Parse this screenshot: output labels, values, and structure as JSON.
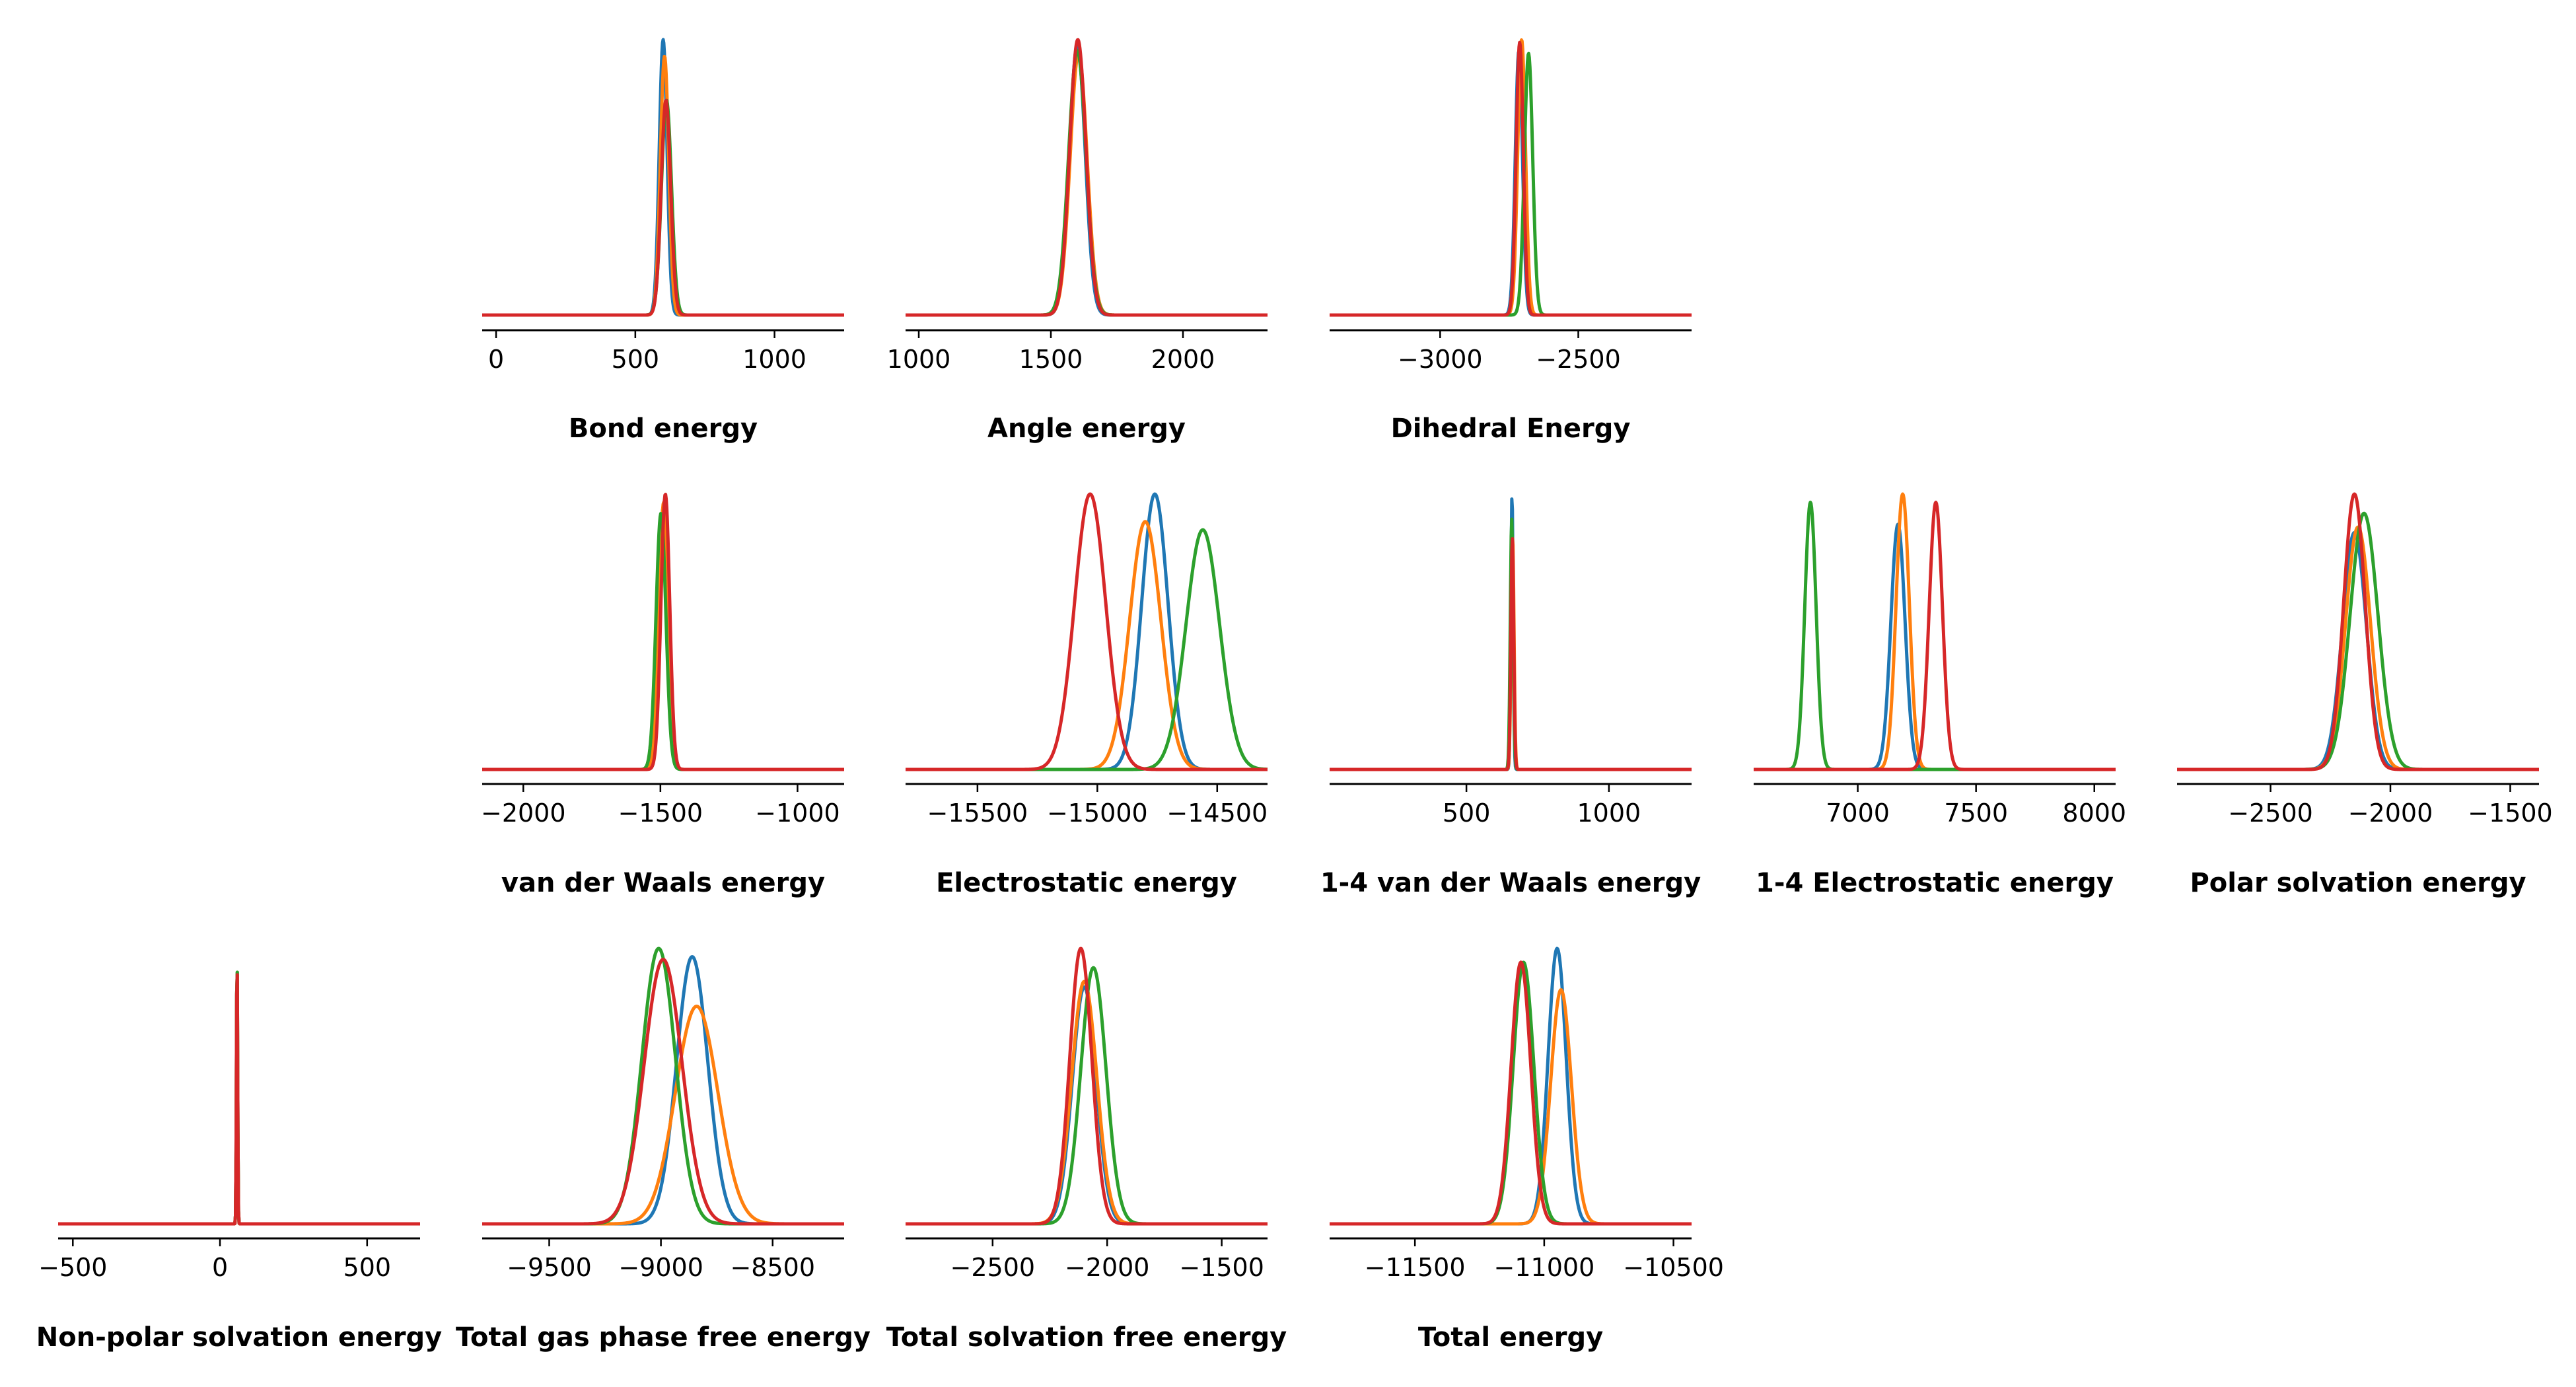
{
  "colors": {
    "blue": "#1f77b4",
    "orange": "#ff7f0e",
    "green": "#2ca02c",
    "red": "#d62728",
    "axis": "#000000",
    "background": "#ffffff"
  },
  "chart_data": [
    {
      "type": "line",
      "title": "Bond energy",
      "xlim": [
        -50,
        1250
      ],
      "xticks": [
        {
          "value": 0,
          "label": "0"
        },
        {
          "value": 500,
          "label": "500"
        },
        {
          "value": 1000,
          "label": "1000"
        }
      ],
      "series": [
        {
          "color": "#1f77b4",
          "mean": 600,
          "sd": 14,
          "peak": 1.0
        },
        {
          "color": "#ff7f0e",
          "mean": 605,
          "sd": 15,
          "peak": 0.94
        },
        {
          "color": "#2ca02c",
          "mean": 612,
          "sd": 18,
          "peak": 0.78
        },
        {
          "color": "#d62728",
          "mean": 610,
          "sd": 17,
          "peak": 0.78
        }
      ]
    },
    {
      "type": "line",
      "title": "Angle energy",
      "xlim": [
        950,
        2320
      ],
      "xticks": [
        {
          "value": 1000,
          "label": "1000"
        },
        {
          "value": 1500,
          "label": "1500"
        },
        {
          "value": 2000,
          "label": "2000"
        }
      ],
      "series": [
        {
          "color": "#1f77b4",
          "mean": 1600,
          "sd": 30,
          "peak": 0.98
        },
        {
          "color": "#ff7f0e",
          "mean": 1605,
          "sd": 32,
          "peak": 0.95
        },
        {
          "color": "#2ca02c",
          "mean": 1600,
          "sd": 33,
          "peak": 0.96
        },
        {
          "color": "#d62728",
          "mean": 1602,
          "sd": 31,
          "peak": 1.0
        }
      ]
    },
    {
      "type": "line",
      "title": "Dihedral Energy",
      "xlim": [
        -3400,
        -2090
      ],
      "xticks": [
        {
          "value": -3000,
          "label": "−3000"
        },
        {
          "value": -2500,
          "label": "−2500"
        }
      ],
      "series": [
        {
          "color": "#1f77b4",
          "mean": -2715,
          "sd": 13,
          "peak": 0.96
        },
        {
          "color": "#ff7f0e",
          "mean": -2705,
          "sd": 14,
          "peak": 1.0
        },
        {
          "color": "#2ca02c",
          "mean": -2680,
          "sd": 15,
          "peak": 0.95
        },
        {
          "color": "#d62728",
          "mean": -2712,
          "sd": 13,
          "peak": 0.99
        }
      ]
    },
    {
      "type": "line",
      "title": "van der Waals energy",
      "xlim": [
        -2150,
        -830
      ],
      "xticks": [
        {
          "value": -2000,
          "label": "−2000"
        },
        {
          "value": -1500,
          "label": "−1500"
        },
        {
          "value": -1000,
          "label": "−1000"
        }
      ],
      "series": [
        {
          "color": "#1f77b4",
          "mean": -1490,
          "sd": 17,
          "peak": 0.95
        },
        {
          "color": "#ff7f0e",
          "mean": -1488,
          "sd": 17,
          "peak": 0.97
        },
        {
          "color": "#2ca02c",
          "mean": -1498,
          "sd": 18,
          "peak": 0.93
        },
        {
          "color": "#d62728",
          "mean": -1482,
          "sd": 16,
          "peak": 1.0
        }
      ]
    },
    {
      "type": "line",
      "title": "Electrostatic energy",
      "xlim": [
        -15800,
        -14290
      ],
      "xticks": [
        {
          "value": -15500,
          "label": "−15500"
        },
        {
          "value": -15000,
          "label": "−15000"
        },
        {
          "value": -14500,
          "label": "−14500"
        }
      ],
      "series": [
        {
          "color": "#1f77b4",
          "mean": -14760,
          "sd": 55,
          "peak": 1.0
        },
        {
          "color": "#ff7f0e",
          "mean": -14800,
          "sd": 65,
          "peak": 0.9
        },
        {
          "color": "#2ca02c",
          "mean": -14560,
          "sd": 70,
          "peak": 0.87
        },
        {
          "color": "#d62728",
          "mean": -15030,
          "sd": 65,
          "peak": 1.0
        }
      ]
    },
    {
      "type": "line",
      "title": "1-4 van der Waals energy",
      "xlim": [
        20,
        1290
      ],
      "xticks": [
        {
          "value": 500,
          "label": "500"
        },
        {
          "value": 1000,
          "label": "1000"
        }
      ],
      "series": [
        {
          "color": "#1f77b4",
          "mean": 660,
          "sd": 4,
          "peak": 1.0
        },
        {
          "color": "#ff7f0e",
          "mean": 662,
          "sd": 5,
          "peak": 0.85
        },
        {
          "color": "#2ca02c",
          "mean": 659,
          "sd": 5,
          "peak": 0.91
        },
        {
          "color": "#d62728",
          "mean": 661,
          "sd": 5,
          "peak": 0.84
        }
      ]
    },
    {
      "type": "line",
      "title": "1-4 Electrostatic energy",
      "xlim": [
        6560,
        8090
      ],
      "xticks": [
        {
          "value": 7000,
          "label": "7000"
        },
        {
          "value": 7500,
          "label": "7500"
        },
        {
          "value": 8000,
          "label": "8000"
        }
      ],
      "series": [
        {
          "color": "#1f77b4",
          "mean": 7170,
          "sd": 30,
          "peak": 0.89
        },
        {
          "color": "#ff7f0e",
          "mean": 7190,
          "sd": 28,
          "peak": 1.0
        },
        {
          "color": "#2ca02c",
          "mean": 6800,
          "sd": 24,
          "peak": 0.97
        },
        {
          "color": "#d62728",
          "mean": 7330,
          "sd": 28,
          "peak": 0.97
        }
      ]
    },
    {
      "type": "line",
      "title": "Polar solvation energy",
      "xlim": [
        -2890,
        -1380
      ],
      "xticks": [
        {
          "value": -2500,
          "label": "−2500"
        },
        {
          "value": -2000,
          "label": "−2000"
        },
        {
          "value": -1500,
          "label": "−1500"
        }
      ],
      "series": [
        {
          "color": "#1f77b4",
          "mean": -2150,
          "sd": 50,
          "peak": 0.86
        },
        {
          "color": "#ff7f0e",
          "mean": -2135,
          "sd": 52,
          "peak": 0.88
        },
        {
          "color": "#2ca02c",
          "mean": -2110,
          "sd": 58,
          "peak": 0.93
        },
        {
          "color": "#d62728",
          "mean": -2150,
          "sd": 45,
          "peak": 1.0
        }
      ]
    },
    {
      "type": "line",
      "title": "Non-polar solvation energy",
      "xlim": [
        -550,
        680
      ],
      "xticks": [
        {
          "value": -500,
          "label": "−500"
        },
        {
          "value": 0,
          "label": "0"
        },
        {
          "value": 500,
          "label": "500"
        }
      ],
      "series": [
        {
          "color": "#1f77b4",
          "mean": 58,
          "sd": 2,
          "peak": 1.0
        },
        {
          "color": "#ff7f0e",
          "mean": 58,
          "sd": 2,
          "peak": 1.0
        },
        {
          "color": "#2ca02c",
          "mean": 58,
          "sd": 2,
          "peak": 1.0
        },
        {
          "color": "#d62728",
          "mean": 58,
          "sd": 2,
          "peak": 0.99
        }
      ]
    },
    {
      "type": "line",
      "title": "Total gas phase free energy",
      "xlim": [
        -9800,
        -8180
      ],
      "xticks": [
        {
          "value": -9500,
          "label": "−9500"
        },
        {
          "value": -9000,
          "label": "−9000"
        },
        {
          "value": -8500,
          "label": "−8500"
        }
      ],
      "series": [
        {
          "color": "#1f77b4",
          "mean": -8860,
          "sd": 70,
          "peak": 0.97
        },
        {
          "color": "#ff7f0e",
          "mean": -8840,
          "sd": 95,
          "peak": 0.79
        },
        {
          "color": "#2ca02c",
          "mean": -9010,
          "sd": 75,
          "peak": 1.0
        },
        {
          "color": "#d62728",
          "mean": -8990,
          "sd": 85,
          "peak": 0.96
        }
      ]
    },
    {
      "type": "line",
      "title": "Total solvation free energy",
      "xlim": [
        -2880,
        -1300
      ],
      "xticks": [
        {
          "value": -2500,
          "label": "−2500"
        },
        {
          "value": -2000,
          "label": "−2000"
        },
        {
          "value": -1500,
          "label": "−1500"
        }
      ],
      "series": [
        {
          "color": "#1f77b4",
          "mean": -2100,
          "sd": 52,
          "peak": 0.86
        },
        {
          "color": "#ff7f0e",
          "mean": -2100,
          "sd": 55,
          "peak": 0.88
        },
        {
          "color": "#2ca02c",
          "mean": -2060,
          "sd": 55,
          "peak": 0.93
        },
        {
          "color": "#d62728",
          "mean": -2115,
          "sd": 48,
          "peak": 1.0
        }
      ]
    },
    {
      "type": "line",
      "title": "Total energy",
      "xlim": [
        -11830,
        -10430
      ],
      "xticks": [
        {
          "value": -11500,
          "label": "−11500"
        },
        {
          "value": -11000,
          "label": "−11000"
        },
        {
          "value": -10500,
          "label": "−10500"
        }
      ],
      "series": [
        {
          "color": "#1f77b4",
          "mean": -10950,
          "sd": 35,
          "peak": 1.0
        },
        {
          "color": "#ff7f0e",
          "mean": -10935,
          "sd": 40,
          "peak": 0.85
        },
        {
          "color": "#2ca02c",
          "mean": -11080,
          "sd": 40,
          "peak": 0.95
        },
        {
          "color": "#d62728",
          "mean": -11090,
          "sd": 38,
          "peak": 0.95
        }
      ]
    }
  ]
}
